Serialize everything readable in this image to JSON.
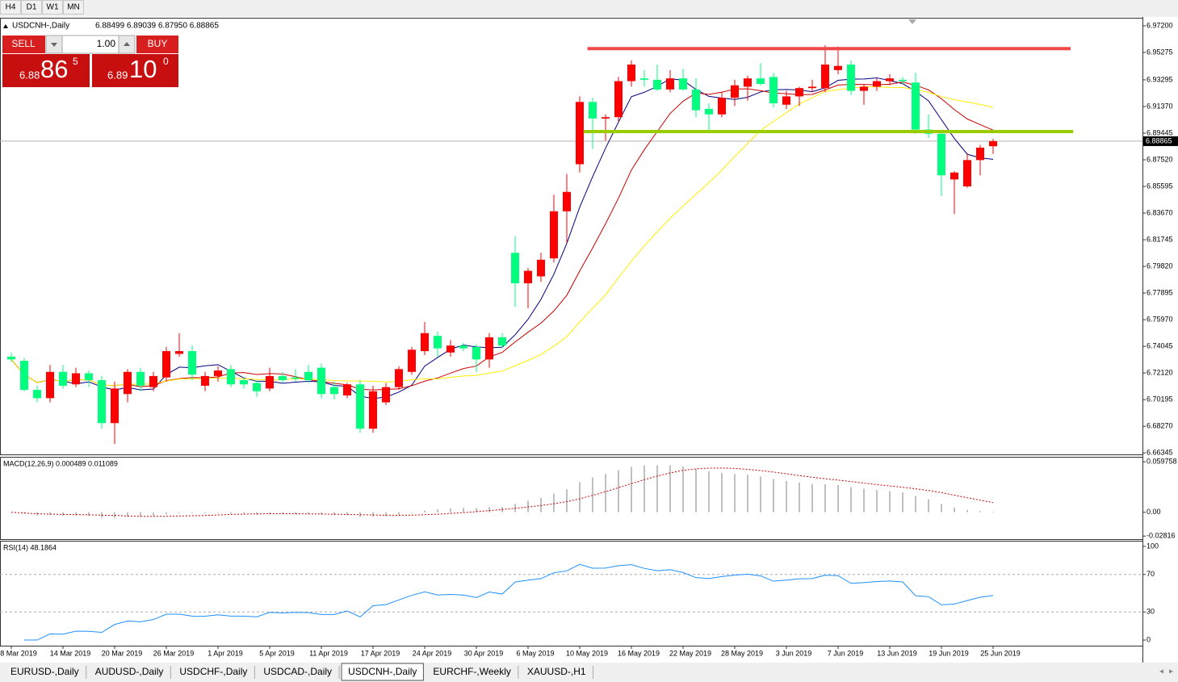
{
  "toolbar": {
    "timeframes": [
      "H4",
      "D1",
      "W1",
      "MN"
    ]
  },
  "trade_panel": {
    "sell": "SELL",
    "buy": "BUY",
    "lots": "1.00",
    "bid": {
      "big": "6.88",
      "main": "86",
      "small": "5"
    },
    "ask": {
      "big": "6.89",
      "main": "10",
      "small": "0"
    }
  },
  "chart_data": [
    {
      "type": "candlestick",
      "title": "USDCNH-,Daily",
      "ohlc_text": "6.88499 6.89039 6.87950 6.88865",
      "categories": [
        "8 Mar 2019",
        null,
        null,
        null,
        "14 Mar 2019",
        null,
        null,
        null,
        "20 Mar 2019",
        null,
        null,
        null,
        "26 Mar 2019",
        null,
        null,
        null,
        "1 Apr 2019",
        null,
        null,
        null,
        "5 Apr 2019",
        null,
        null,
        null,
        "11 Apr 2019",
        null,
        null,
        null,
        "17 Apr 2019",
        null,
        null,
        null,
        "24 Apr 2019",
        null,
        null,
        null,
        "30 Apr 2019",
        null,
        null,
        null,
        "6 May 2019",
        null,
        null,
        null,
        "10 May 2019",
        null,
        null,
        null,
        "16 May 2019",
        null,
        null,
        null,
        "22 May 2019",
        null,
        null,
        null,
        "28 May 2019",
        null,
        null,
        null,
        "3 Jun 2019",
        null,
        null,
        null,
        "7 Jun 2019",
        null,
        null,
        null,
        "13 Jun 2019",
        null,
        null,
        null,
        "19 Jun 2019",
        null,
        null,
        null,
        "25 Jun 2019"
      ],
      "open": [
        6.733,
        6.73,
        6.709,
        6.703,
        6.722,
        6.713,
        6.721,
        6.716,
        6.685,
        6.706,
        6.722,
        6.711,
        6.718,
        6.735,
        6.737,
        6.712,
        6.719,
        6.724,
        6.716,
        6.714,
        6.71,
        6.719,
        6.718,
        6.722,
        6.725,
        6.711,
        6.705,
        6.713,
        6.681,
        6.7,
        6.711,
        6.722,
        6.737,
        6.748,
        6.736,
        6.741,
        6.74,
        6.731,
        6.747,
        6.808,
        6.786,
        6.791,
        6.804,
        6.838,
        6.872,
        6.917,
        6.905,
        6.906,
        6.932,
        6.934,
        6.933,
        6.926,
        6.934,
        6.926,
        6.912,
        6.908,
        6.92,
        6.928,
        6.934,
        6.935,
        6.915,
        6.921,
        6.927,
        6.927,
        6.94,
        6.944,
        6.925,
        6.928,
        6.932,
        6.933,
        6.931,
        6.897,
        6.894,
        6.861,
        6.856,
        6.875,
        6.88499
      ],
      "high": [
        6.736,
        6.732,
        6.712,
        6.727,
        6.727,
        6.725,
        6.723,
        6.719,
        6.715,
        6.724,
        6.725,
        6.722,
        6.74,
        6.75,
        6.741,
        6.722,
        6.726,
        6.727,
        6.718,
        6.716,
        6.725,
        6.722,
        6.724,
        6.727,
        6.728,
        6.715,
        6.714,
        6.716,
        6.712,
        6.714,
        6.726,
        6.74,
        6.758,
        6.751,
        6.745,
        6.743,
        6.742,
        6.75,
        6.75,
        6.82,
        6.797,
        6.808,
        6.85,
        6.865,
        6.921,
        6.92,
        6.908,
        6.935,
        6.947,
        6.94,
        6.944,
        6.94,
        6.941,
        6.934,
        6.916,
        6.924,
        6.933,
        6.936,
        6.945,
        6.938,
        6.925,
        6.928,
        6.933,
        6.958,
        6.957,
        6.947,
        6.93,
        6.934,
        6.937,
        6.935,
        6.938,
        6.908,
        6.897,
        6.867,
        6.88,
        6.886,
        6.89039
      ],
      "low": [
        6.729,
        6.708,
        6.7,
        6.7,
        6.71,
        6.711,
        6.711,
        6.681,
        6.67,
        6.7,
        6.708,
        6.708,
        6.715,
        6.733,
        6.716,
        6.708,
        6.715,
        6.711,
        6.71,
        6.704,
        6.708,
        6.714,
        6.715,
        6.714,
        6.703,
        6.702,
        6.703,
        6.678,
        6.678,
        6.698,
        6.709,
        6.72,
        6.734,
        6.733,
        6.733,
        6.737,
        6.722,
        6.725,
        6.739,
        6.769,
        6.768,
        6.787,
        6.801,
        6.815,
        6.866,
        6.883,
        6.889,
        6.903,
        6.928,
        6.928,
        6.925,
        6.924,
        6.925,
        6.906,
        6.895,
        6.906,
        6.914,
        6.918,
        6.929,
        6.913,
        6.912,
        6.914,
        6.924,
        6.924,
        6.937,
        6.922,
        6.915,
        6.925,
        6.929,
        6.93,
        6.894,
        6.891,
        6.849,
        6.836,
        6.855,
        6.864,
        6.8795
      ],
      "close": [
        6.731,
        6.709,
        6.703,
        6.722,
        6.712,
        6.721,
        6.716,
        6.685,
        6.71,
        6.722,
        6.712,
        6.719,
        6.737,
        6.737,
        6.72,
        6.719,
        6.723,
        6.713,
        6.713,
        6.708,
        6.719,
        6.716,
        6.717,
        6.716,
        6.706,
        6.706,
        6.713,
        6.681,
        6.708,
        6.711,
        6.724,
        6.738,
        6.75,
        6.739,
        6.741,
        6.739,
        6.731,
        6.747,
        6.741,
        6.786,
        6.795,
        6.803,
        6.838,
        6.852,
        6.917,
        6.905,
        6.906,
        6.932,
        6.944,
        6.933,
        6.926,
        6.934,
        6.926,
        6.911,
        6.908,
        6.92,
        6.929,
        6.934,
        6.93,
        6.916,
        6.921,
        6.927,
        6.928,
        6.944,
        6.943,
        6.925,
        6.928,
        6.932,
        6.934,
        6.932,
        6.897,
        6.894,
        6.864,
        6.866,
        6.875,
        6.884,
        6.88865
      ],
      "up_color": "#ff0000",
      "down_color": "#00ff7f",
      "moving_averages": [
        {
          "period": 5,
          "color": "#000080"
        },
        {
          "period": 10,
          "color": "#cc0000"
        },
        {
          "period": 20,
          "color": "#ffee00"
        }
      ],
      "hlines": [
        {
          "value": 6.9555,
          "color": "#f04848",
          "xrange": [
            44.6,
            82
          ]
        },
        {
          "value": 6.8956,
          "color": "#9acd00",
          "xrange": [
            44.3,
            82.2
          ]
        }
      ],
      "ylim": [
        6.6624,
        6.9778
      ],
      "yticks": [
        {
          "value": 6.972,
          "label": "6.97200"
        },
        6.95275,
        6.93295,
        {
          "value": 6.9137,
          "label": "6.91370"
        },
        6.89445,
        {
          "value": 6.8752,
          "label": "6.87520"
        },
        6.85595,
        {
          "value": 6.8367,
          "label": "6.83670"
        },
        6.81745,
        {
          "value": 6.7982,
          "label": "6.79820"
        },
        6.77895,
        {
          "value": 6.7597,
          "label": "6.75970"
        },
        6.74045,
        {
          "value": 6.7212,
          "label": "6.72120"
        },
        6.70195,
        {
          "value": 6.6827,
          "label": "6.68270"
        },
        6.66345
      ]
    },
    {
      "type": "macd",
      "title": "MACD(12,26,9) 0.000489 0.011089",
      "periods": [
        12,
        26,
        9
      ],
      "color": "#c0c0c0",
      "signal_color": "#cc0000",
      "ylim": [
        -0.0318,
        0.0656
      ],
      "yticks": [
        0.059758,
        {
          "value": 0,
          "label": "0.00"
        },
        -0.02816
      ]
    },
    {
      "type": "rsi",
      "title": "RSI(14) 48.1864",
      "period": 14,
      "color": "#1e90ff",
      "ylim": [
        -6,
        106
      ],
      "yticks": [
        100,
        70,
        30,
        0
      ]
    }
  ],
  "tabs": [
    "EURUSD-,Daily",
    "AUDUSD-,Daily",
    "USDCHF-,Daily",
    "USDCAD-,Daily",
    "USDCNH-,Daily",
    "EURCHF-,Weekly",
    "XAUUSD-,H1"
  ],
  "active_tab": 4
}
